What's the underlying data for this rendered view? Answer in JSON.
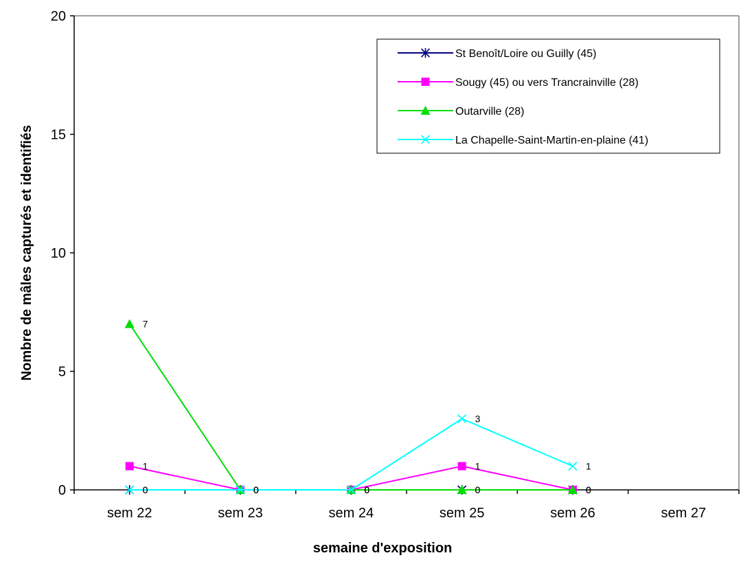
{
  "chart_data": {
    "type": "line",
    "title": "",
    "xlabel": "semaine d'exposition",
    "ylabel": "Nombre de mâles capturés et identifiés",
    "ylim": [
      0,
      20
    ],
    "yticks": [
      0,
      5,
      10,
      15,
      20
    ],
    "categories": [
      "sem 22",
      "sem 23",
      "sem 24",
      "sem 25",
      "sem 26",
      "sem 27"
    ],
    "legend_position": "top-right",
    "grid": false,
    "series": [
      {
        "name": "St Benoît/Loire ou Guilly (45)",
        "color": "#000080",
        "marker": "asterisk",
        "values": [
          0,
          0,
          0,
          0,
          0,
          null
        ],
        "labels": [
          "0",
          "0",
          "0",
          "0",
          "0",
          ""
        ]
      },
      {
        "name": "Sougy (45) ou vers Trancrainville (28)",
        "color": "#ff00ff",
        "marker": "square",
        "values": [
          1,
          0,
          0,
          1,
          0,
          null
        ],
        "labels": [
          "1",
          "0",
          "0",
          "1",
          "0",
          ""
        ]
      },
      {
        "name": "Outarville (28)",
        "color": "#00dd00",
        "marker": "triangle",
        "values": [
          7,
          0,
          0,
          0,
          0,
          null
        ],
        "labels": [
          "7",
          "0",
          "0",
          "0",
          "0",
          ""
        ]
      },
      {
        "name": "La Chapelle-Saint-Martin-en-plaine  (41)",
        "color": "#00ffff",
        "marker": "x",
        "values": [
          0,
          0,
          0,
          3,
          1,
          null
        ],
        "labels": [
          "0",
          "0",
          "0",
          "3",
          "1",
          ""
        ]
      }
    ]
  }
}
